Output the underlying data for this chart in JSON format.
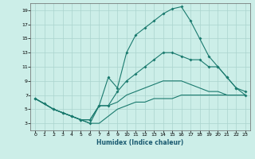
{
  "xlabel": "Humidex (Indice chaleur)",
  "bg_color": "#cceee8",
  "grid_color": "#aad4ce",
  "line_color": "#1a7a6e",
  "xlim": [
    -0.5,
    23.5
  ],
  "ylim": [
    2,
    20
  ],
  "yticks": [
    3,
    5,
    7,
    9,
    11,
    13,
    15,
    17,
    19
  ],
  "xticks": [
    0,
    1,
    2,
    3,
    4,
    5,
    6,
    7,
    8,
    9,
    10,
    11,
    12,
    13,
    14,
    15,
    16,
    17,
    18,
    19,
    20,
    21,
    22,
    23
  ],
  "line1_x": [
    0,
    1,
    2,
    3,
    4,
    5,
    6,
    7,
    8,
    9,
    10,
    11,
    12,
    13,
    14,
    15,
    16,
    17,
    18,
    19,
    20,
    21,
    22,
    23
  ],
  "line1_y": [
    6.5,
    5.8,
    5,
    4.5,
    4,
    3.5,
    3,
    5.5,
    9.5,
    8,
    13,
    15.5,
    16.5,
    17.5,
    18.5,
    19.2,
    19.5,
    17.5,
    15,
    12.5,
    11,
    9.5,
    8,
    7.5
  ],
  "line2_x": [
    0,
    2,
    3,
    4,
    5,
    6,
    7,
    8,
    9,
    10,
    11,
    12,
    13,
    14,
    15,
    16,
    17,
    18,
    19,
    20,
    21,
    22,
    23
  ],
  "line2_y": [
    6.5,
    5,
    4.5,
    4,
    3.5,
    3.5,
    5.5,
    5.5,
    7.5,
    9,
    10,
    11,
    12,
    13,
    13,
    12.5,
    12,
    12,
    11,
    11,
    9.5,
    8,
    7
  ],
  "line3_x": [
    0,
    2,
    3,
    4,
    5,
    6,
    7,
    8,
    9,
    10,
    11,
    12,
    13,
    14,
    15,
    16,
    17,
    18,
    19,
    20,
    21,
    22,
    23
  ],
  "line3_y": [
    6.5,
    5,
    4.5,
    4,
    3.5,
    3.5,
    5.5,
    5.5,
    6,
    7,
    7.5,
    8,
    8.5,
    9,
    9,
    9,
    8.5,
    8,
    7.5,
    7.5,
    7,
    7,
    7
  ],
  "line4_x": [
    0,
    2,
    3,
    4,
    5,
    6,
    7,
    8,
    9,
    10,
    11,
    12,
    13,
    14,
    15,
    16,
    17,
    18,
    19,
    20,
    21,
    22,
    23
  ],
  "line4_y": [
    6.5,
    5,
    4.5,
    4,
    3.5,
    3,
    3,
    4,
    5,
    5.5,
    6,
    6,
    6.5,
    6.5,
    6.5,
    7,
    7,
    7,
    7,
    7,
    7,
    7,
    7
  ]
}
